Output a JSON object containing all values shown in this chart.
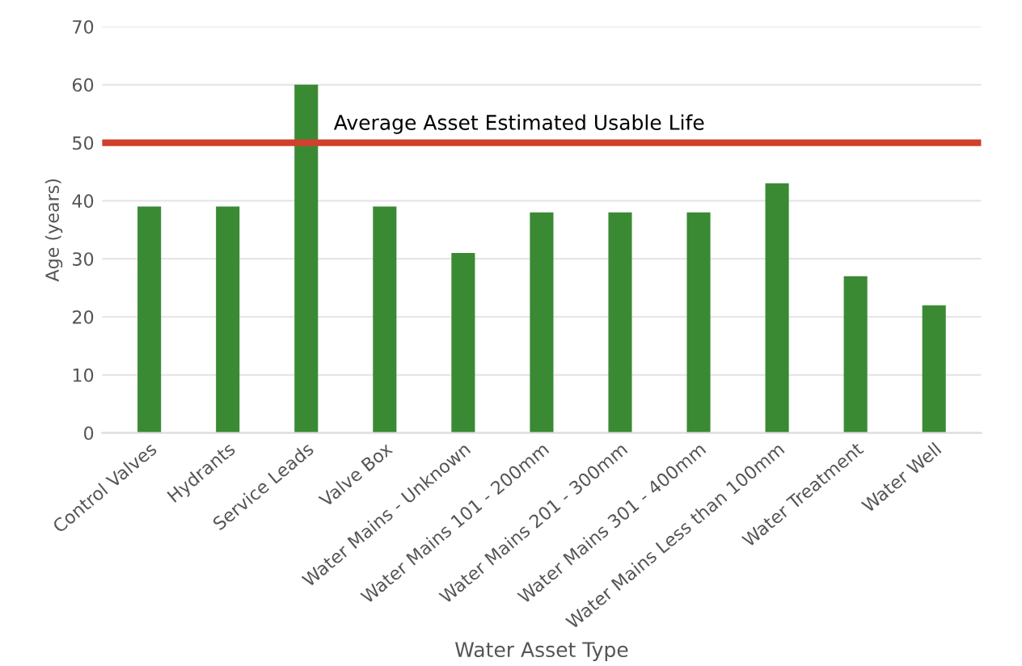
{
  "chart_data": {
    "type": "bar",
    "xlabel": "Water Asset Type",
    "ylabel": "Age (years)",
    "categories": [
      "Control Valves",
      "Hydrants",
      "Service Leads",
      "Valve Box",
      "Water Mains - Unknown",
      "Water Mains 101 - 200mm",
      "Water Mains 201 - 300mm",
      "Water Mains 301 - 400mm",
      "Water Mains Less than 100mm",
      "Water Treatment",
      "Water Well"
    ],
    "values": [
      39,
      39,
      60,
      39,
      31,
      38,
      38,
      38,
      43,
      27,
      22
    ],
    "color": "#3a8a34",
    "ylim": [
      0,
      70
    ],
    "yticks": [
      0,
      10,
      20,
      30,
      40,
      50,
      60,
      70
    ],
    "grid": "y",
    "ref_lines": [
      {
        "axis": "y",
        "value": 50,
        "label": "Average Asset Estimated Usable Life",
        "color": "#d0402c"
      }
    ]
  }
}
